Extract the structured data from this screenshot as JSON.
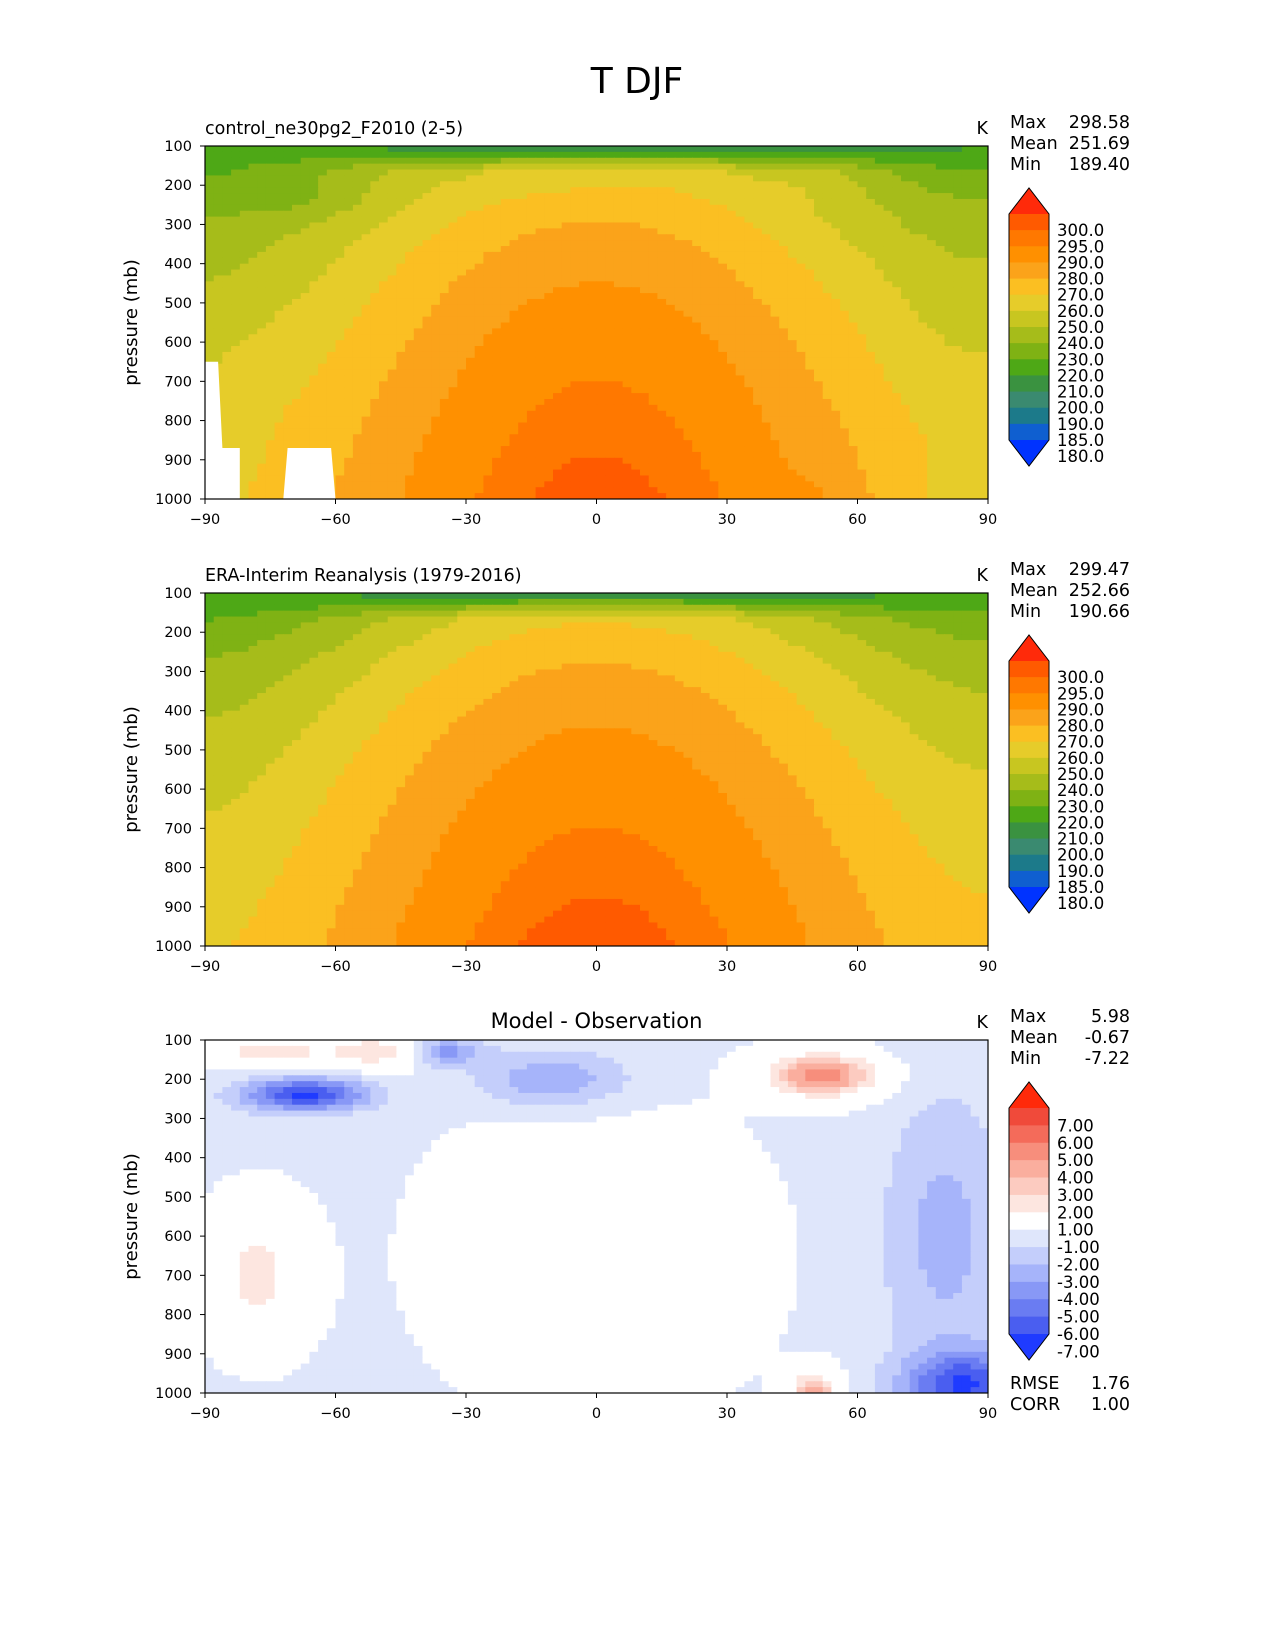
{
  "figure": {
    "title": "T DJF"
  },
  "chart_data": [
    {
      "type": "heatmap",
      "panel_title": "control_ne30pg2_F2010 (2-5)",
      "title_position": "left",
      "units": "K",
      "ylabel": "pressure (mb)",
      "xlim": [
        -90,
        90
      ],
      "ylim": [
        1000,
        100
      ],
      "x_ticks": [
        "−90",
        "−60",
        "−30",
        "0",
        "30",
        "60",
        "90"
      ],
      "y_ticks": [
        "100",
        "200",
        "300",
        "400",
        "500",
        "600",
        "700",
        "800",
        "900",
        "1000"
      ],
      "stats": [
        {
          "label": "Max",
          "value": "298.58"
        },
        {
          "label": "Mean",
          "value": "251.69"
        },
        {
          "label": "Min",
          "value": "189.40"
        }
      ],
      "colorbar_levels": [
        "300.0",
        "295.0",
        "290.0",
        "280.0",
        "270.0",
        "260.0",
        "250.0",
        "240.0",
        "230.0",
        "220.0",
        "210.0",
        "200.0",
        "190.0",
        "185.0",
        "180.0"
      ],
      "colorbar_colors": [
        "#ff2a0a",
        "#ff5a00",
        "#ff7800",
        "#ff9000",
        "#fba31a",
        "#fbbf22",
        "#e6cc2a",
        "#c8c620",
        "#a6bc1a",
        "#7fb214",
        "#4ea816",
        "#3a9240",
        "#3a8a70",
        "#1c7a8a",
        "#0f5fd0",
        "#0033ff"
      ],
      "field": "model",
      "missing_regions": [
        {
          "x": [
            -90,
            -87,
            -86,
            -82,
            -82,
            -90
          ],
          "y": [
            650,
            650,
            870,
            870,
            1000,
            1000
          ]
        },
        {
          "x": [
            -71,
            -61,
            -60,
            -72
          ],
          "y": [
            870,
            870,
            1000,
            1000
          ]
        }
      ]
    },
    {
      "type": "heatmap",
      "panel_title": "ERA-Interim Reanalysis (1979-2016)",
      "title_position": "left",
      "units": "K",
      "ylabel": "pressure (mb)",
      "xlim": [
        -90,
        90
      ],
      "ylim": [
        1000,
        100
      ],
      "x_ticks": [
        "−90",
        "−60",
        "−30",
        "0",
        "30",
        "60",
        "90"
      ],
      "y_ticks": [
        "100",
        "200",
        "300",
        "400",
        "500",
        "600",
        "700",
        "800",
        "900",
        "1000"
      ],
      "stats": [
        {
          "label": "Max",
          "value": "299.47"
        },
        {
          "label": "Mean",
          "value": "252.66"
        },
        {
          "label": "Min",
          "value": "190.66"
        }
      ],
      "colorbar_levels": [
        "300.0",
        "295.0",
        "290.0",
        "280.0",
        "270.0",
        "260.0",
        "250.0",
        "240.0",
        "230.0",
        "220.0",
        "210.0",
        "200.0",
        "190.0",
        "185.0",
        "180.0"
      ],
      "colorbar_colors": [
        "#ff2a0a",
        "#ff5a00",
        "#ff7800",
        "#ff9000",
        "#fba31a",
        "#fbbf22",
        "#e6cc2a",
        "#c8c620",
        "#a6bc1a",
        "#7fb214",
        "#4ea816",
        "#3a9240",
        "#3a8a70",
        "#1c7a8a",
        "#0f5fd0",
        "#0033ff"
      ],
      "field": "obs",
      "missing_regions": []
    },
    {
      "type": "heatmap",
      "panel_title": "Model - Observation",
      "title_position": "center",
      "units": "K",
      "ylabel": "pressure (mb)",
      "xlim": [
        -90,
        90
      ],
      "ylim": [
        1000,
        100
      ],
      "x_ticks": [
        "−90",
        "−60",
        "−30",
        "0",
        "30",
        "60",
        "90"
      ],
      "y_ticks": [
        "100",
        "200",
        "300",
        "400",
        "500",
        "600",
        "700",
        "800",
        "900",
        "1000"
      ],
      "stats": [
        {
          "label": "Max",
          "value": "5.98"
        },
        {
          "label": "Mean",
          "value": "-0.67"
        },
        {
          "label": "Min",
          "value": "-7.22"
        }
      ],
      "extra_stats": [
        {
          "label": "RMSE",
          "value": "1.76"
        },
        {
          "label": "CORR",
          "value": "1.00"
        }
      ],
      "colorbar_levels": [
        "7.00",
        "6.00",
        "5.00",
        "4.00",
        "3.00",
        "2.00",
        "1.00",
        "-1.00",
        "-2.00",
        "-3.00",
        "-4.00",
        "-5.00",
        "-6.00",
        "-7.00"
      ],
      "colorbar_colors": [
        "#ff2a0a",
        "#f04a3a",
        "#f46b5a",
        "#f78e7c",
        "#faae9e",
        "#fccbc0",
        "#fde6e0",
        "#ffffff",
        "#dfe6fb",
        "#c4cefb",
        "#a6b4fa",
        "#8898f6",
        "#6a7cf2",
        "#4a5ef0",
        "#1f3bff"
      ],
      "field": "diff",
      "missing_regions": []
    }
  ]
}
